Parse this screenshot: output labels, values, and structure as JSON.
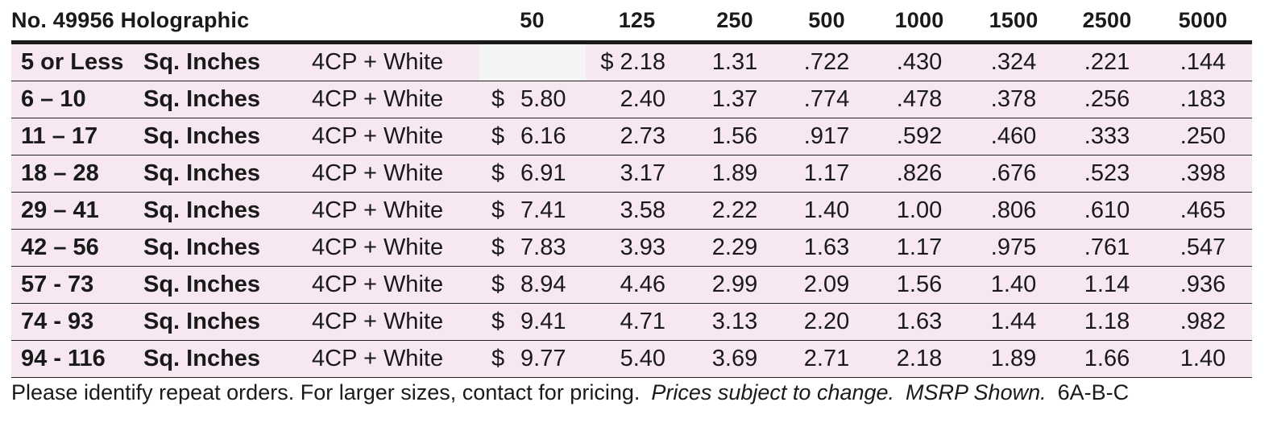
{
  "header": {
    "title": "No. 49956 Holographic",
    "quantities": [
      "50",
      "125",
      "250",
      "500",
      "1000",
      "1500",
      "2500",
      "5000"
    ]
  },
  "rows": [
    {
      "range": "5 or Less",
      "unit": "Sq. Inches",
      "process": "4CP + White",
      "p50": "",
      "p125": "$ 2.18",
      "prices": [
        "1.31",
        ".722",
        ".430",
        ".324",
        ".221",
        ".144"
      ]
    },
    {
      "range": "6 – 10",
      "unit": "Sq. Inches",
      "process": "4CP + White",
      "p50": "5.80",
      "p125": "2.40",
      "prices": [
        "1.37",
        ".774",
        ".478",
        ".378",
        ".256",
        ".183"
      ]
    },
    {
      "range": "11 – 17",
      "unit": "Sq. Inches",
      "process": "4CP + White",
      "p50": "6.16",
      "p125": "2.73",
      "prices": [
        "1.56",
        ".917",
        ".592",
        ".460",
        ".333",
        ".250"
      ]
    },
    {
      "range": "18 – 28",
      "unit": "Sq. Inches",
      "process": "4CP + White",
      "p50": "6.91",
      "p125": "3.17",
      "prices": [
        "1.89",
        "1.17",
        ".826",
        ".676",
        ".523",
        ".398"
      ]
    },
    {
      "range": "29 – 41",
      "unit": "Sq. Inches",
      "process": "4CP + White",
      "p50": "7.41",
      "p125": "3.58",
      "prices": [
        "2.22",
        "1.40",
        "1.00",
        ".806",
        ".610",
        ".465"
      ]
    },
    {
      "range": "42 – 56",
      "unit": "Sq. Inches",
      "process": "4CP + White",
      "p50": "7.83",
      "p125": "3.93",
      "prices": [
        "2.29",
        "1.63",
        "1.17",
        ".975",
        ".761",
        ".547"
      ]
    },
    {
      "range": "57 - 73",
      "unit": "Sq. Inches",
      "process": "4CP + White",
      "p50": "8.94",
      "p125": "4.46",
      "prices": [
        "2.99",
        "2.09",
        "1.56",
        "1.40",
        "1.14",
        ".936"
      ]
    },
    {
      "range": "74 - 93",
      "unit": "Sq. Inches",
      "process": "4CP + White",
      "p50": "9.41",
      "p125": "4.71",
      "prices": [
        "3.13",
        "2.20",
        "1.63",
        "1.44",
        "1.18",
        ".982"
      ]
    },
    {
      "range": "94 - 116",
      "unit": "Sq. Inches",
      "process": "4CP + White",
      "p50": "9.77",
      "p125": "5.40",
      "prices": [
        "3.69",
        "2.71",
        "2.18",
        "1.89",
        "1.66",
        "1.40"
      ]
    }
  ],
  "currency_symbol": "$",
  "footer": {
    "note": "Please identify repeat orders. For larger sizes, contact for pricing.",
    "disclaimer": "Prices subject to change.",
    "msrp": "MSRP Shown.",
    "code": "6A-B-C"
  },
  "colors": {
    "row_background": "#f6e7f1",
    "empty_cell": "#f3f4f3",
    "rule": "#1a1a1a"
  }
}
